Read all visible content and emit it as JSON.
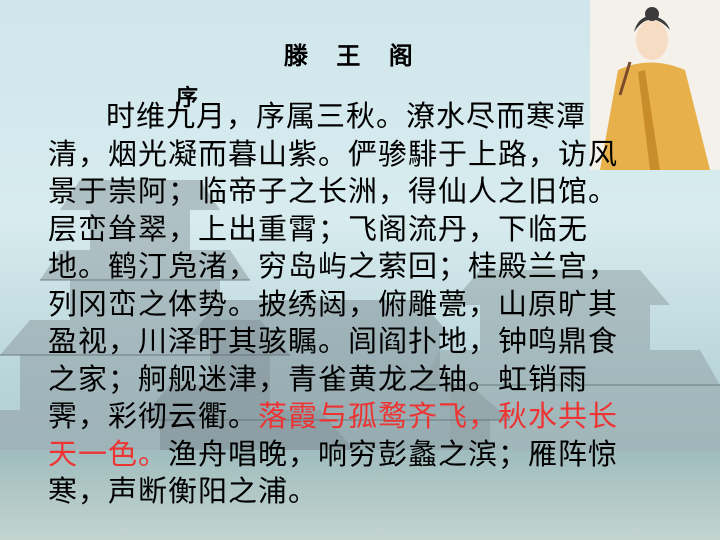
{
  "title": "滕 王 阁",
  "subtitle": "序",
  "poem": {
    "part1": "时维九月，序属三秋。潦水尽而寒潭清，烟光凝而暮山紫。俨骖騑于上路，访风景于崇阿；临帝子之长洲，得仙人之旧馆。层峦耸翠，上出重霄；飞阁流丹，下临无地。鹤汀凫渚，穷岛屿之萦回；桂殿兰宫，列冈峦之体势。披绣闼，俯雕甍，山原旷其盈视，川泽盱其骇瞩。闾阎扑地，钟鸣鼎食之家；舸舰迷津，青雀黄龙之轴。虹销雨霁，彩彻云衢。",
    "highlight": "落霞与孤鹜齐飞，秋水共长天一色。",
    "part2": "渔舟唱晚，响穷彭蠡之滨；雁阵惊寒，声断衡阳之浦。"
  },
  "colors": {
    "highlight": "#ee3333",
    "text": "#000000"
  },
  "icons": {
    "figure": "scholar-figure-illustration",
    "background": "pavilion-illustration"
  }
}
